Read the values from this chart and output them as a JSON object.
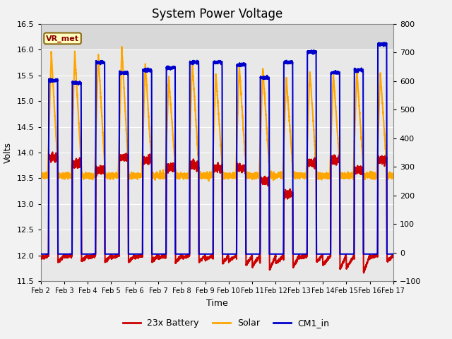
{
  "title": "System Power Voltage",
  "xlabel": "Time",
  "ylabel_left": "Volts",
  "ylim_left": [
    11.5,
    16.5
  ],
  "ylim_right": [
    -100,
    800
  ],
  "yticks_left": [
    11.5,
    12.0,
    12.5,
    13.0,
    13.5,
    14.0,
    14.5,
    15.0,
    15.5,
    16.0,
    16.5
  ],
  "yticks_right": [
    -100,
    0,
    100,
    200,
    300,
    400,
    500,
    600,
    700,
    800
  ],
  "xtick_labels": [
    "Feb 2",
    "Feb 3",
    "Feb 4",
    "Feb 5",
    "Feb 6",
    "Feb 7",
    "Feb 8",
    "Feb 9",
    "Feb 10",
    "Feb 11",
    "Feb 12",
    "Feb 13",
    "Feb 14",
    "Feb 15",
    "Feb 16",
    "Feb 17"
  ],
  "legend_labels": [
    "23x Battery",
    "Solar",
    "CM1_in"
  ],
  "vr_met_label": "VR_met",
  "vr_met_text_color": "#8b0000",
  "vr_met_bg_color": "#ffffc0",
  "vr_met_edge_color": "#8b6914",
  "plot_bg_color": "#e8e8e8",
  "upper_band_color": "#d8d8d8",
  "fig_bg_color": "#f2f2f2",
  "grid_color": "#ffffff",
  "title_fontsize": 12,
  "axis_fontsize": 9,
  "tick_fontsize": 8,
  "legend_fontsize": 9,
  "battery_color": "#cc0000",
  "solar_color": "#ffa500",
  "cm1_color": "#0000cc",
  "battery_lw": 1.5,
  "solar_lw": 1.5,
  "cm1_lw": 1.5,
  "n_days": 15,
  "samples_per_day": 288,
  "cm1_peaks": [
    15.4,
    15.35,
    15.75,
    15.55,
    15.6,
    15.65,
    15.75,
    15.75,
    15.7,
    15.45,
    15.75,
    15.95,
    15.55,
    15.6,
    16.1
  ],
  "solar_peaks": [
    15.95,
    15.95,
    15.9,
    16.05,
    15.75,
    15.45,
    15.75,
    15.55,
    15.7,
    15.65,
    15.45,
    15.6,
    15.55,
    15.6,
    15.55
  ],
  "battery_daytime_peaks": [
    13.9,
    13.8,
    13.65,
    13.9,
    13.85,
    13.7,
    13.75,
    13.7,
    13.7,
    13.45,
    13.2,
    13.8,
    13.85,
    13.65,
    13.85
  ],
  "battery_night_mins": [
    11.95,
    11.98,
    11.97,
    11.96,
    11.97,
    11.95,
    11.96,
    11.93,
    11.9,
    11.8,
    11.85,
    11.97,
    11.82,
    11.75,
    11.97
  ]
}
